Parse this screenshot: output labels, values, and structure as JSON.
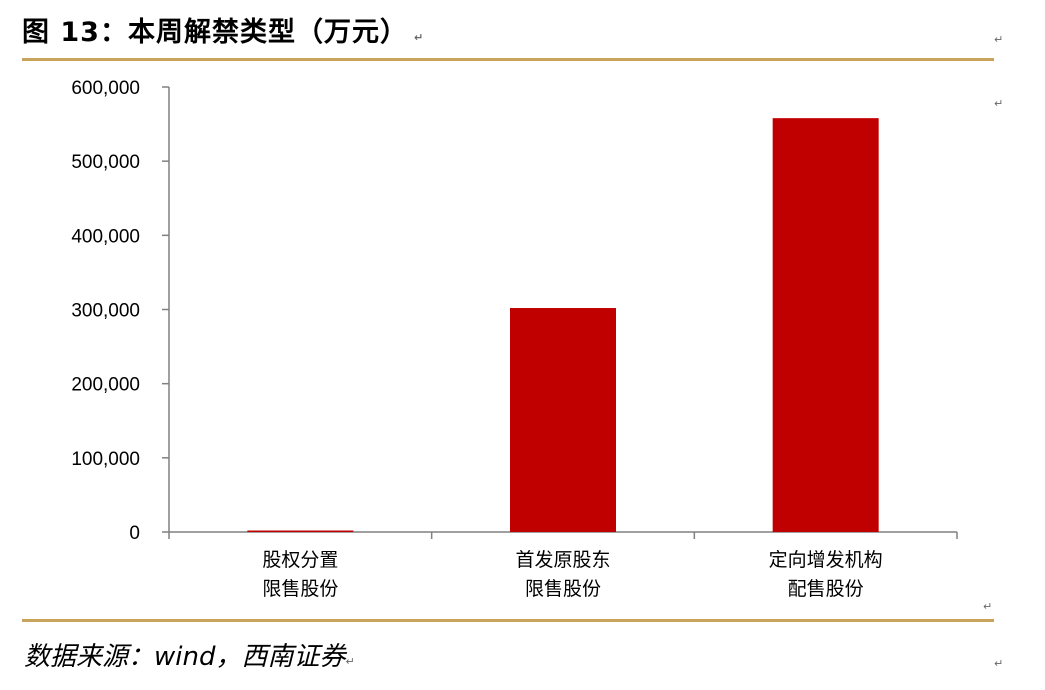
{
  "header": {
    "title": "图 13：本周解禁类型（万元）",
    "title_mark": "↵"
  },
  "footer": {
    "source": "数据来源：wind，西南证券",
    "source_mark": "↵"
  },
  "marks": [
    "↵",
    "↵",
    "↵",
    "↵"
  ],
  "colors": {
    "bar": "#c00000",
    "rule": "#c9a25b",
    "axis": "#808080"
  },
  "chart_data": {
    "type": "bar",
    "categories": [
      [
        "股权分置",
        "限售股份"
      ],
      [
        "首发原股东",
        "限售股份"
      ],
      [
        "定向增发机构",
        "配售股份"
      ]
    ],
    "values": [
      2000,
      302000,
      558000
    ],
    "ylim": [
      0,
      600000
    ],
    "yticks": [
      0,
      100000,
      200000,
      300000,
      400000,
      500000,
      600000
    ],
    "ytick_labels": [
      "0",
      "100,000",
      "200,000",
      "300,000",
      "400,000",
      "500,000",
      "600,000"
    ],
    "grid": false,
    "legend": "none"
  }
}
